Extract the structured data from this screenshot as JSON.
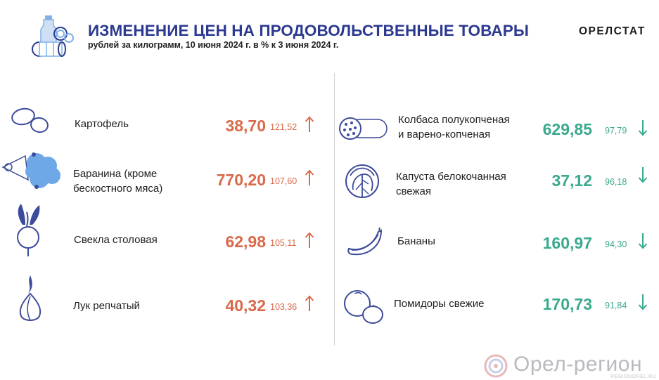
{
  "header": {
    "title": "ИЗМЕНЕНИЕ ЦЕН НА ПРОДОВОЛЬСТВЕННЫЕ ТОВАРЫ",
    "subtitle": "рублей за килограмм, 10 июня 2024 г. в % к 3 июня 2024 г.",
    "brand": "ОРЕЛСТАТ"
  },
  "colors": {
    "title": "#2b3990",
    "up": "#d9694a",
    "down": "#3aa98d",
    "icon": "#3d4b9b",
    "icon_light": "#7fb2e8"
  },
  "left_items": [
    {
      "name": "Картофель",
      "price": "38,70",
      "pct": "121,52",
      "direction": "up",
      "icon": "potato-icon"
    },
    {
      "name": "Баранина (кроме\nбескостного мяса)",
      "price": "770,20",
      "pct": "107,60",
      "direction": "up",
      "icon": "lamb-icon"
    },
    {
      "name": "Свекла столовая",
      "price": "62,98",
      "pct": "105,11",
      "direction": "up",
      "icon": "beet-icon"
    },
    {
      "name": "Лук репчатый",
      "price": "40,32",
      "pct": "103,36",
      "direction": "up",
      "icon": "onion-icon"
    }
  ],
  "right_items": [
    {
      "name": "Колбаса полукопченая\nи варено-копченая",
      "price": "629,85",
      "pct": "97,79",
      "direction": "down",
      "icon": "sausage-icon"
    },
    {
      "name": "Капуста белокочанная\nсвежая",
      "price": "37,12",
      "pct": "96,18",
      "direction": "down",
      "icon": "cabbage-icon"
    },
    {
      "name": "Бананы",
      "price": "160,97",
      "pct": "94,30",
      "direction": "down",
      "icon": "banana-icon"
    },
    {
      "name": "Помидоры свежие",
      "price": "170,73",
      "pct": "91,84",
      "direction": "down",
      "icon": "tomato-icon"
    }
  ],
  "watermark": {
    "text": "Орел-регион",
    "sub": "REGIONOREL.RU"
  }
}
